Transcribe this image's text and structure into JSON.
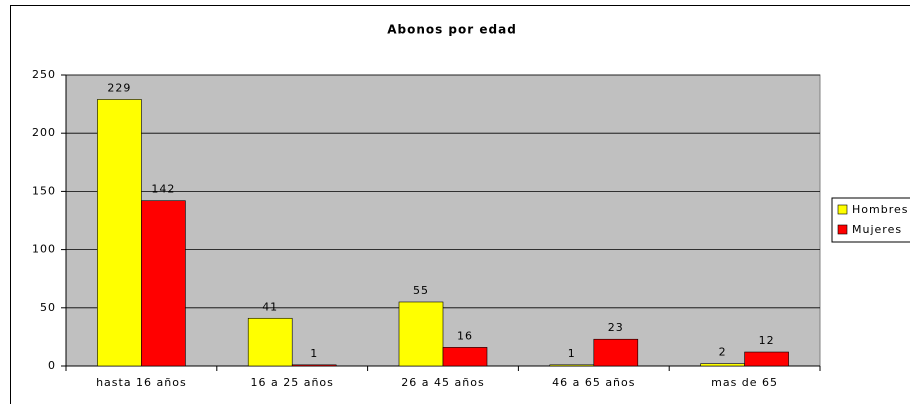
{
  "chart_data": {
    "type": "bar",
    "title": "Abonos por edad",
    "categories": [
      "hasta 16 años",
      "16 a 25 años",
      "26 a 45 años",
      "46 a 65 años",
      "mas de 65"
    ],
    "series": [
      {
        "name": "Hombres",
        "color": "#ffff00",
        "values": [
          229,
          41,
          55,
          1,
          2
        ]
      },
      {
        "name": "Mujeres",
        "color": "#ff0000",
        "values": [
          142,
          1,
          16,
          23,
          12
        ]
      }
    ],
    "ylim": [
      0,
      250
    ],
    "yticks": [
      0,
      50,
      100,
      150,
      200,
      250
    ],
    "grid": true,
    "legend": "right"
  }
}
